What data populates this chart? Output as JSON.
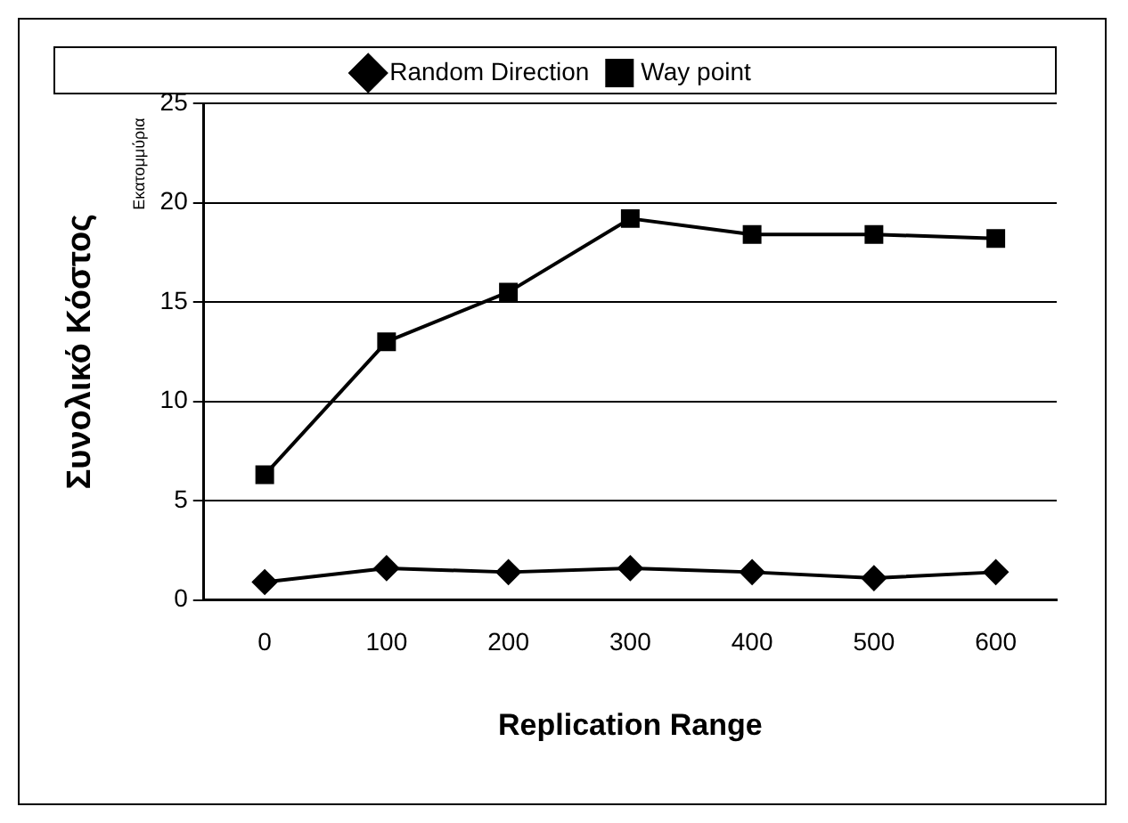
{
  "chart_data": {
    "type": "line",
    "xlabel": "Replication Range",
    "ylabel": "Συνολικό Κόστος",
    "annotations": [
      "Εκατομμύρια"
    ],
    "categories": [
      "0",
      "100",
      "200",
      "300",
      "400",
      "500",
      "600"
    ],
    "series": [
      {
        "name": "Random Direction",
        "color": "#000000",
        "marker": "diamond",
        "values": [
          0.9,
          1.6,
          1.4,
          1.6,
          1.4,
          1.1,
          1.4
        ]
      },
      {
        "name": "Way point",
        "color": "#000000",
        "marker": "square",
        "values": [
          6.3,
          13.0,
          15.5,
          19.2,
          18.4,
          18.4,
          18.2
        ]
      }
    ],
    "ylim": [
      0,
      25
    ],
    "yticks": [
      0,
      5,
      10,
      15,
      20,
      25
    ],
    "grid": "y",
    "legend": "top",
    "line_style": "solid"
  }
}
